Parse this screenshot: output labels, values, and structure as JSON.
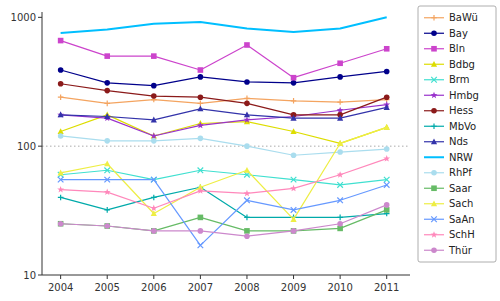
{
  "chart_data": {
    "type": "line",
    "x": [
      2004,
      2005,
      2006,
      2007,
      2008,
      2009,
      2010,
      2011
    ],
    "series": [
      {
        "name": "BaWü",
        "color": "#F4A460",
        "marker": "plus",
        "values": [
          240,
          215,
          230,
          215,
          235,
          225,
          220,
          230
        ]
      },
      {
        "name": "Bay",
        "color": "#00008B",
        "marker": "circle",
        "values": [
          390,
          310,
          295,
          345,
          315,
          310,
          345,
          380
        ]
      },
      {
        "name": "Bln",
        "color": "#CC44CC",
        "marker": "square",
        "values": [
          660,
          500,
          500,
          390,
          610,
          340,
          440,
          570
        ]
      },
      {
        "name": "Bdbg",
        "color": "#DDDD00",
        "marker": "triangle",
        "values": [
          130,
          175,
          120,
          150,
          155,
          130,
          105,
          140
        ]
      },
      {
        "name": "Brm",
        "color": "#40E0D0",
        "marker": "x",
        "values": [
          60,
          65,
          55,
          65,
          60,
          55,
          50,
          55
        ]
      },
      {
        "name": "Hmbg",
        "color": "#9932CC",
        "marker": "star",
        "values": [
          175,
          165,
          120,
          145,
          160,
          170,
          190,
          210
        ]
      },
      {
        "name": "Hess",
        "color": "#8B1A1A",
        "marker": "circle",
        "values": [
          305,
          270,
          245,
          240,
          215,
          175,
          175,
          240
        ]
      },
      {
        "name": "MbVo",
        "color": "#00AAAA",
        "marker": "plus",
        "values": [
          40,
          32,
          40,
          48,
          28,
          28,
          28,
          30
        ]
      },
      {
        "name": "Nds",
        "color": "#3333AA",
        "marker": "triangle",
        "values": [
          175,
          170,
          160,
          195,
          175,
          165,
          165,
          200
        ]
      },
      {
        "name": "NRW",
        "color": "#00BFFF",
        "marker": "none",
        "values": [
          755,
          805,
          890,
          920,
          820,
          770,
          820,
          1000
        ]
      },
      {
        "name": "RhPf",
        "color": "#AADDEE",
        "marker": "circle",
        "values": [
          120,
          110,
          110,
          115,
          100,
          85,
          90,
          95
        ]
      },
      {
        "name": "Saar",
        "color": "#66BB66",
        "marker": "square",
        "values": [
          25,
          24,
          22,
          28,
          22,
          22,
          23,
          32
        ]
      },
      {
        "name": "Sach",
        "color": "#EEEE44",
        "marker": "triangle",
        "values": [
          62,
          73,
          30,
          48,
          65,
          27,
          105,
          140
        ]
      },
      {
        "name": "SaAn",
        "color": "#6699FF",
        "marker": "x",
        "values": [
          55,
          55,
          55,
          17,
          38,
          32,
          38,
          50
        ]
      },
      {
        "name": "SchH",
        "color": "#FF88BB",
        "marker": "star",
        "values": [
          46,
          44,
          33,
          45,
          43,
          47,
          60,
          80
        ]
      },
      {
        "name": "Thür",
        "color": "#CC88CC",
        "marker": "circle",
        "values": [
          25,
          24,
          22,
          22,
          20,
          22,
          25,
          35
        ]
      }
    ],
    "xlim": [
      2003.6,
      2011.5
    ],
    "xticks": [
      2004,
      2005,
      2006,
      2007,
      2008,
      2009,
      2010,
      2011
    ],
    "ylim": [
      10,
      1100
    ],
    "yticks": [
      10,
      100,
      1000
    ],
    "log": "y",
    "grid": false,
    "legend": "right",
    "reference_line_y": 100
  }
}
